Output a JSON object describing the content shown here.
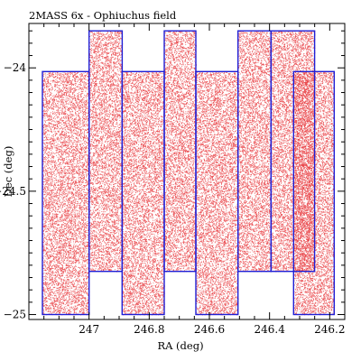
{
  "chart_data": {
    "type": "scatter",
    "title": "2MASS 6x - Ophiuchus field",
    "xlabel": "RA (deg)",
    "ylabel": "Dec (deg)",
    "xlim": [
      247.2,
      246.15
    ],
    "ylim": [
      -25.02,
      -23.82
    ],
    "x_ticks": [
      247,
      246.8,
      246.6,
      246.4,
      246.2
    ],
    "x_tick_labels": [
      "247",
      "246.8",
      "246.6",
      "246.4",
      "246.2"
    ],
    "y_ticks": [
      -24,
      -24.5,
      -25
    ],
    "y_tick_labels": [
      "−24",
      "−24.5",
      "−25"
    ],
    "grid": false,
    "point_color": "#e8383d",
    "outline_color": "#1f1fd6",
    "tiles": [
      {
        "ra_min": 247.0,
        "ra_max": 247.155,
        "dec_min": -25.0,
        "dec_max": -24.015
      },
      {
        "ra_min": 246.89,
        "ra_max": 247.0,
        "dec_min": -24.825,
        "dec_max": -23.85
      },
      {
        "ra_min": 246.75,
        "ra_max": 246.89,
        "dec_min": -25.0,
        "dec_max": -24.015
      },
      {
        "ra_min": 246.645,
        "ra_max": 246.75,
        "dec_min": -24.825,
        "dec_max": -23.85
      },
      {
        "ra_min": 246.505,
        "ra_max": 246.645,
        "dec_min": -25.0,
        "dec_max": -24.015
      },
      {
        "ra_min": 246.395,
        "ra_max": 246.505,
        "dec_min": -24.825,
        "dec_max": -23.85
      },
      {
        "ra_min": 246.25,
        "ra_max": 246.395,
        "dec_min": -24.825,
        "dec_max": -23.85
      },
      {
        "ra_min": 246.185,
        "ra_max": 246.32,
        "dec_min": -25.0,
        "dec_max": -24.015
      }
    ]
  }
}
